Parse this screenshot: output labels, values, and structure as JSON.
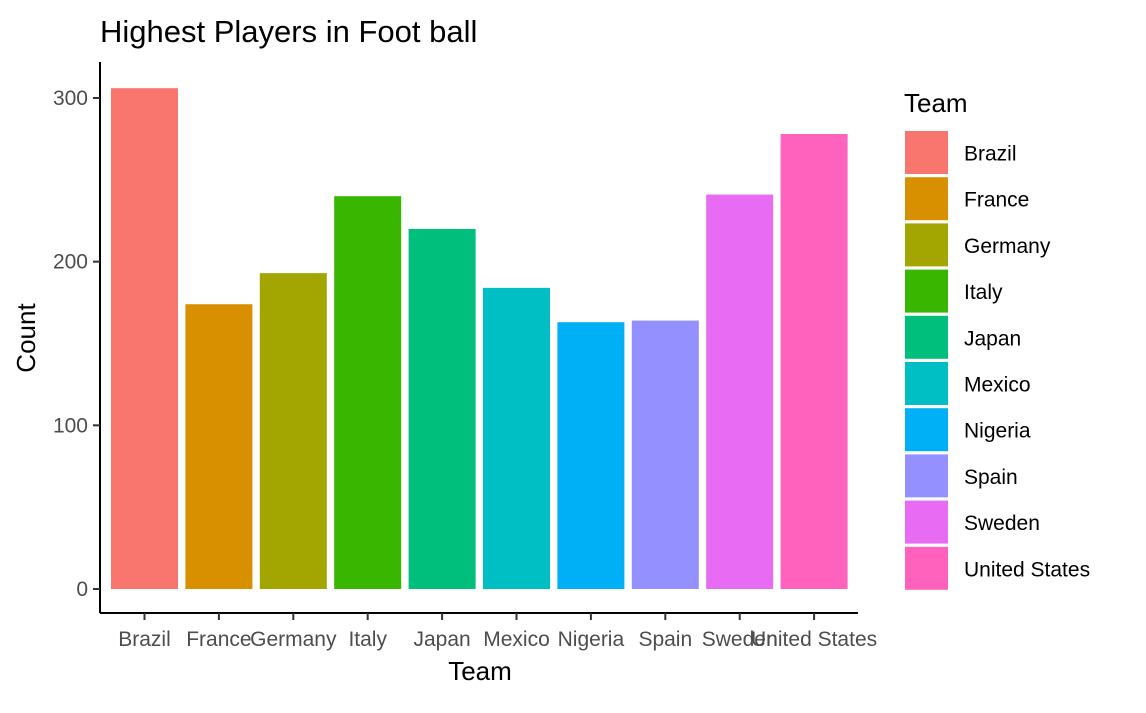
{
  "chart_data": {
    "type": "bar",
    "title": "Highest Players in Foot ball",
    "xlabel": "Team",
    "ylabel": "Count",
    "categories": [
      "Brazil",
      "France",
      "Germany",
      "Italy",
      "Japan",
      "Mexico",
      "Nigeria",
      "Spain",
      "Sweden",
      "United States"
    ],
    "values": [
      306,
      174,
      193,
      240,
      220,
      184,
      163,
      164,
      241,
      278
    ],
    "colors": [
      "#F8766D",
      "#D89000",
      "#A3A500",
      "#39B600",
      "#00BF7D",
      "#00BFC4",
      "#00B0F6",
      "#9590FF",
      "#E76BF3",
      "#FF62BC"
    ],
    "ylim": [
      0,
      322
    ],
    "yticks": [
      0,
      100,
      200,
      300
    ],
    "grid": false,
    "legend": {
      "title": "Team",
      "placement": "right",
      "entries": [
        "Brazil",
        "France",
        "Germany",
        "Italy",
        "Japan",
        "Mexico",
        "Nigeria",
        "Spain",
        "Sweden",
        "United States"
      ]
    }
  }
}
